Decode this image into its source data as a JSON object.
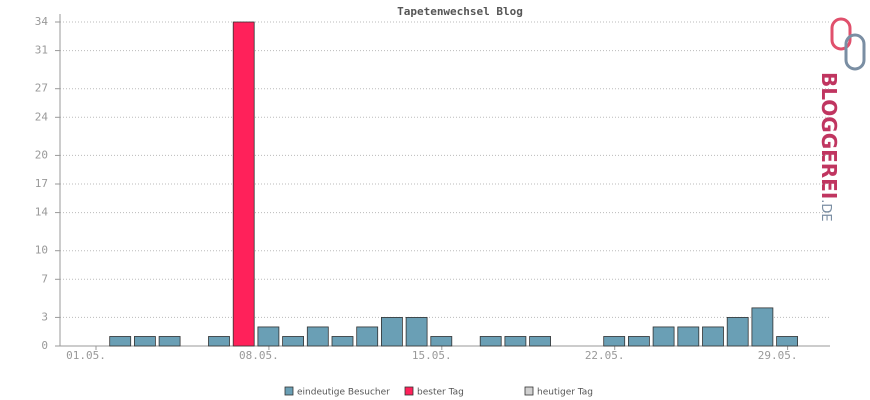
{
  "chart_data": {
    "type": "bar",
    "title": "Tapetenwechsel Blog",
    "categories": [
      "01.05.",
      null,
      null,
      null,
      null,
      null,
      null,
      "08.05.",
      null,
      null,
      null,
      null,
      null,
      null,
      "15.05.",
      null,
      null,
      null,
      null,
      null,
      null,
      "22.05.",
      null,
      null,
      null,
      null,
      null,
      null,
      "29.05.",
      null
    ],
    "series": [
      {
        "name": "eindeutige Besucher",
        "color": "#6a9fb5",
        "values": [
          0,
          1,
          1,
          1,
          0,
          1,
          null,
          2,
          1,
          2,
          1,
          2,
          3,
          3,
          1,
          0,
          1,
          1,
          1,
          0,
          0,
          1,
          1,
          2,
          2,
          2,
          3,
          4,
          1,
          0
        ]
      },
      {
        "name": "bester Tag",
        "color": "#ff215a",
        "values": [
          null,
          null,
          null,
          null,
          null,
          null,
          34,
          null,
          null,
          null,
          null,
          null,
          null,
          null,
          null,
          null,
          null,
          null,
          null,
          null,
          null,
          null,
          null,
          null,
          null,
          null,
          null,
          null,
          null,
          null
        ]
      },
      {
        "name": "heutiger Tag",
        "color": "#d0d0d0",
        "values": [
          null,
          null,
          null,
          null,
          null,
          null,
          null,
          null,
          null,
          null,
          null,
          null,
          null,
          null,
          null,
          null,
          null,
          null,
          null,
          null,
          null,
          null,
          null,
          null,
          null,
          null,
          null,
          null,
          null,
          null
        ]
      }
    ],
    "ylim": [
      0,
      34
    ],
    "yticks": [
      0,
      3,
      7,
      10,
      14,
      17,
      20,
      24,
      27,
      31,
      34
    ],
    "grid": true,
    "logo": {
      "main": "BLOGGEREI",
      "suffix": ".DE"
    }
  }
}
